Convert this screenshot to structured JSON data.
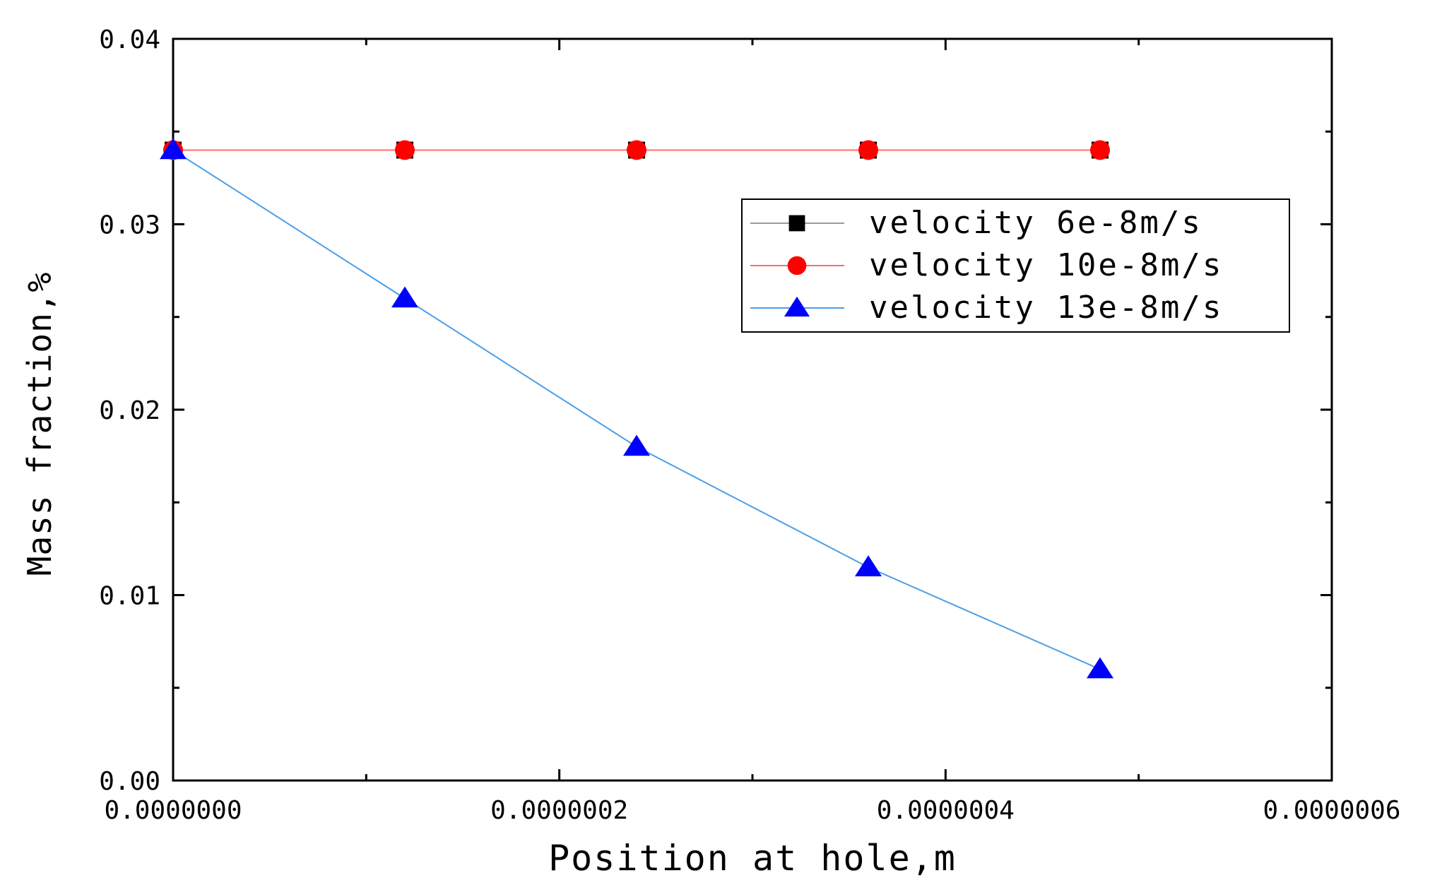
{
  "chart_data": {
    "type": "line",
    "title": "",
    "xlabel": "Position at hole,m",
    "ylabel": "Mass fraction,%",
    "xlim": [
      0,
      6e-07
    ],
    "ylim": [
      0,
      0.04
    ],
    "x_ticks": [
      {
        "value": 0,
        "label": "0.0000000"
      },
      {
        "value": 2e-07,
        "label": "0.0000002"
      },
      {
        "value": 4e-07,
        "label": "0.0000004"
      },
      {
        "value": 6e-07,
        "label": "0.0000006"
      }
    ],
    "x_minor_ticks": [
      1e-07,
      3e-07,
      5e-07
    ],
    "y_ticks": [
      {
        "value": 0,
        "label": "0.00"
      },
      {
        "value": 0.01,
        "label": "0.01"
      },
      {
        "value": 0.02,
        "label": "0.02"
      },
      {
        "value": 0.03,
        "label": "0.03"
      },
      {
        "value": 0.04,
        "label": "0.04"
      }
    ],
    "y_minor_ticks": [
      0.005,
      0.015,
      0.025,
      0.035
    ],
    "grid": false,
    "legend_position": "upper-right",
    "x": [
      0,
      1.2e-07,
      2.4e-07,
      3.6e-07,
      4.8e-07
    ],
    "series": [
      {
        "name": "velocity 6e-8m/s",
        "values": [
          0.034,
          0.034,
          0.034,
          0.034,
          0.034
        ],
        "marker": "square",
        "line_color": "#9a9a9a",
        "marker_color": "#000000"
      },
      {
        "name": "velocity 10e-8m/s",
        "values": [
          0.034,
          0.034,
          0.034,
          0.034,
          0.034
        ],
        "marker": "circle",
        "line_color": "#ff6b6b",
        "marker_color": "#ff0000"
      },
      {
        "name": "velocity 13e-8m/s",
        "values": [
          0.034,
          0.026,
          0.018,
          0.0115,
          0.006
        ],
        "marker": "triangle",
        "line_color": "#4a9fe8",
        "marker_color": "#0000ff"
      }
    ]
  }
}
